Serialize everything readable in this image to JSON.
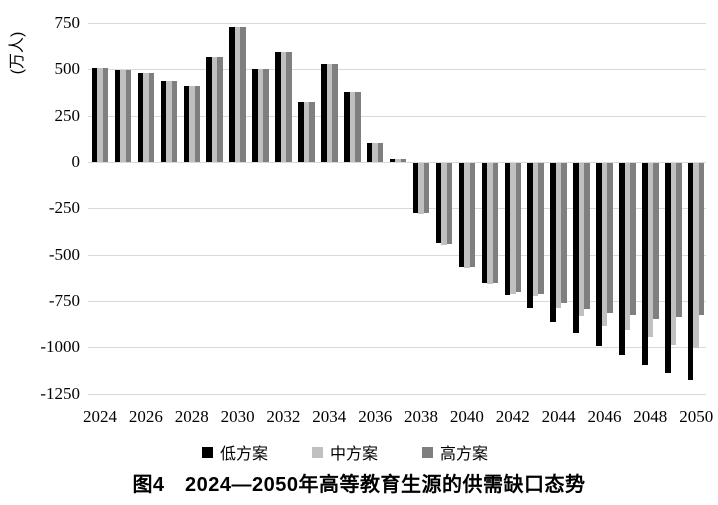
{
  "caption": "图4　2024—2050年高等教育生源的供需缺口态势",
  "y_axis_title": "(万人)",
  "chart_data": {
    "type": "bar",
    "title": "图4 2024—2050年高等教育生源的供需缺口态势",
    "ylabel": "(万人)",
    "xlabel": "",
    "grid": true,
    "legend_position": "bottom",
    "ylim": [
      -1250,
      750
    ],
    "y_ticks": [
      750,
      500,
      250,
      0,
      -250,
      -500,
      -750,
      -1000,
      -1250
    ],
    "x_tick_labels": [
      "2024",
      "2026",
      "2028",
      "2030",
      "2032",
      "2034",
      "2036",
      "2038",
      "2040",
      "2042",
      "2044",
      "2046",
      "2048",
      "2050"
    ],
    "categories": [
      2024,
      2025,
      2026,
      2027,
      2028,
      2029,
      2030,
      2031,
      2032,
      2033,
      2034,
      2035,
      2036,
      2037,
      2038,
      2039,
      2040,
      2041,
      2042,
      2043,
      2044,
      2045,
      2046,
      2047,
      2048,
      2049,
      2050
    ],
    "series": [
      {
        "name": "低方案",
        "color": "#000000",
        "values": [
          510,
          495,
          480,
          440,
          410,
          565,
          730,
          505,
          595,
          325,
          530,
          380,
          105,
          15,
          -270,
          -430,
          -560,
          -650,
          -715,
          -785,
          -860,
          -915,
          -990,
          -1035,
          -1090,
          -1135,
          -1170
        ]
      },
      {
        "name": "中方案",
        "color": "#c0c0c0",
        "values": [
          510,
          495,
          480,
          440,
          410,
          565,
          730,
          505,
          595,
          325,
          530,
          380,
          105,
          15,
          -275,
          -440,
          -565,
          -655,
          -705,
          -720,
          -780,
          -825,
          -880,
          -900,
          -940,
          -980,
          -1000
        ]
      },
      {
        "name": "高方案",
        "color": "#7f7f7f",
        "values": [
          510,
          495,
          480,
          440,
          410,
          565,
          730,
          505,
          595,
          325,
          530,
          380,
          105,
          15,
          -270,
          -435,
          -560,
          -650,
          -695,
          -705,
          -755,
          -790,
          -810,
          -820,
          -840,
          -830,
          -820
        ]
      }
    ],
    "colors": {
      "gridline": "#d9d9d9",
      "text": "#000000"
    }
  }
}
